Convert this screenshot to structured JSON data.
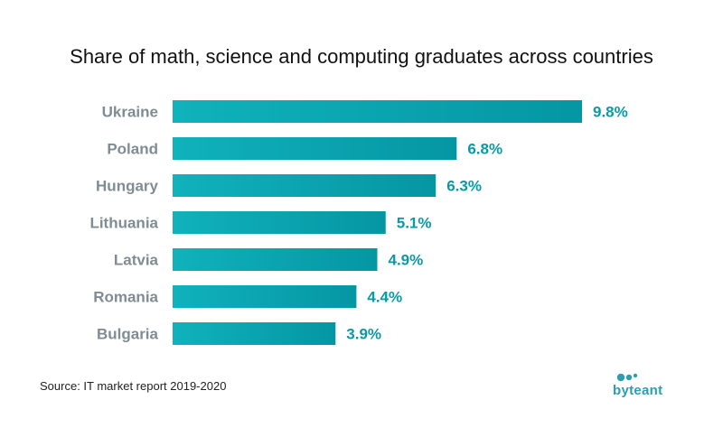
{
  "colors": {
    "bar_start": "#10b2bc",
    "bar_end": "#0596a3",
    "value_text": "#0a9aa6",
    "category_text": "#808c93",
    "logo": "#2a9fb0"
  },
  "source": "Source: IT market report 2019-2020",
  "logo": {
    "text": "byteant"
  },
  "chart_data": {
    "type": "bar",
    "orientation": "horizontal",
    "title": "Share of math, science and computing graduates across countries",
    "categories": [
      "Ukraine",
      "Poland",
      "Hungary",
      "Lithuania",
      "Latvia",
      "Romania",
      "Bulgaria"
    ],
    "values": [
      9.8,
      6.8,
      6.3,
      5.1,
      4.9,
      4.4,
      3.9
    ],
    "value_labels": [
      "9.8%",
      "6.8%",
      "6.3%",
      "5.1%",
      "4.9%",
      "4.4%",
      "3.9%"
    ],
    "unit": "%",
    "xlim": [
      0,
      9.8
    ],
    "grid": false,
    "legend": "none"
  }
}
